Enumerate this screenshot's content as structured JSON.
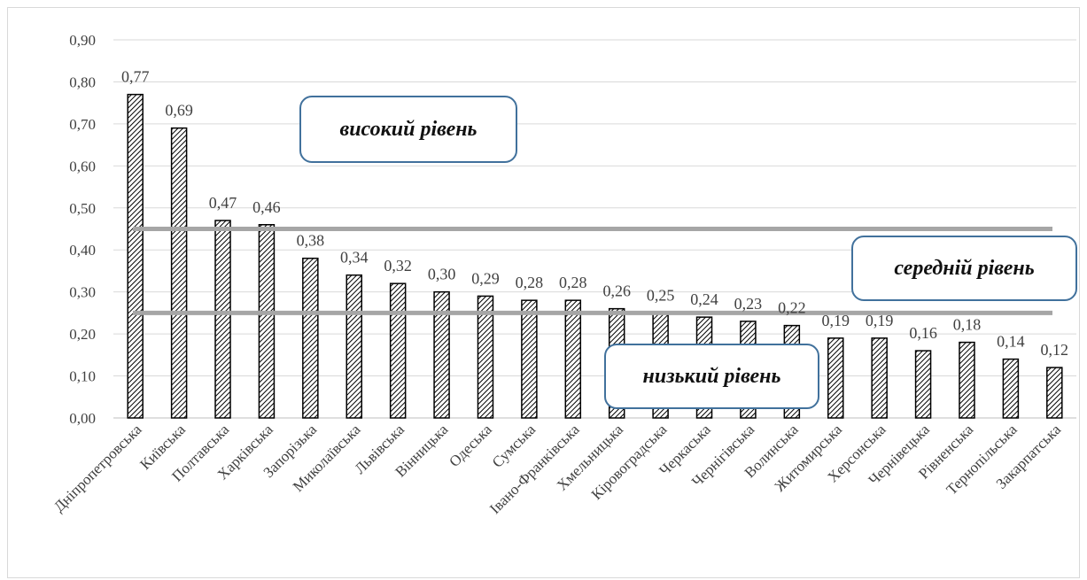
{
  "chart_data": {
    "type": "bar",
    "categories": [
      "Дніпропетровська",
      "Київська",
      "Полтавська",
      "Харківська",
      "Запорізька",
      "Миколаївська",
      "Львівська",
      "Вінницька",
      "Одеська",
      "Сумська",
      "Івано-Франківська",
      "Хмельницька",
      "Кіровоградська",
      "Черкаська",
      "Чернігівська",
      "Волинська",
      "Житомирська",
      "Херсонська",
      "Чернівецька",
      "Рівненська",
      "Тернопільська",
      "Закарпатська"
    ],
    "values": [
      0.77,
      0.69,
      0.47,
      0.46,
      0.38,
      0.34,
      0.32,
      0.3,
      0.29,
      0.28,
      0.28,
      0.26,
      0.25,
      0.24,
      0.23,
      0.22,
      0.19,
      0.19,
      0.16,
      0.18,
      0.14,
      0.12
    ],
    "value_labels": [
      "0,77",
      "0,69",
      "0,47",
      "0,46",
      "0,38",
      "0,34",
      "0,32",
      "0,30",
      "0,29",
      "0,28",
      "0,28",
      "0,26",
      "0,25",
      "0,24",
      "0,23",
      "0,22",
      "0,19",
      "0,19",
      "0,16",
      "0,18",
      "0,14",
      "0,12"
    ],
    "y_ticks": [
      0,
      0.1,
      0.2,
      0.3,
      0.4,
      0.5,
      0.6,
      0.7,
      0.8,
      0.9
    ],
    "y_tick_labels": [
      "0,00",
      "0,10",
      "0,20",
      "0,30",
      "0,40",
      "0,50",
      "0,60",
      "0,70",
      "0,80",
      "0,90"
    ],
    "ylim": [
      0,
      0.9
    ],
    "grid": true,
    "bar_pattern": "diagonal-hatch",
    "thresholds": [
      0.45,
      0.25
    ],
    "title": "",
    "xlabel": "",
    "ylabel": ""
  },
  "zones": {
    "high": "високий рівень",
    "middle": "середній рівень",
    "low": "низький рівень"
  },
  "colors": {
    "bar_stroke": "#000000",
    "grid": "#d9d9d9",
    "threshold": "#a6a6a6",
    "box_border": "#41719c",
    "text": "#404040"
  }
}
